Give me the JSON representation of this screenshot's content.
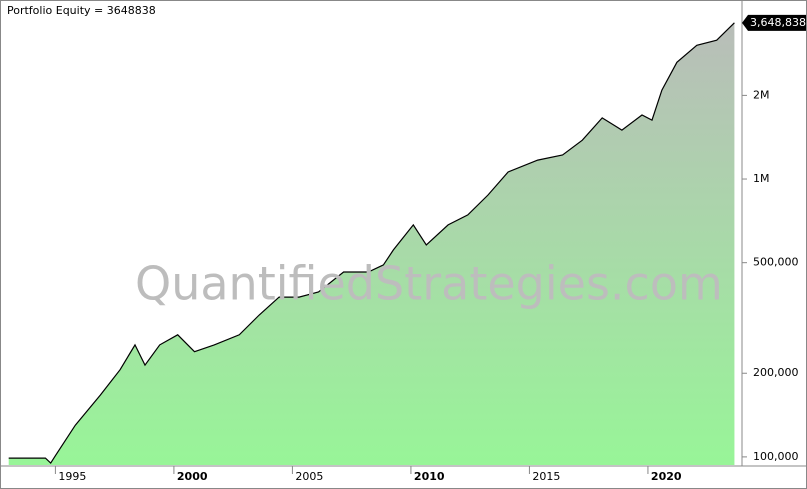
{
  "chart_data": {
    "type": "area",
    "title": "Portfolio Equity = 3648838",
    "watermark": "QuantifiedStrategies.com",
    "log_scale": true,
    "xlim": [
      1993.0,
      2023.8
    ],
    "xticks": [
      1995,
      2000,
      2005,
      2010,
      2015,
      2020
    ],
    "ylim": [
      93500,
      4230000
    ],
    "yticks": [
      {
        "value": 100000,
        "label": "100,000"
      },
      {
        "value": 200000,
        "label": "200,000"
      },
      {
        "value": 500000,
        "label": "500,000"
      },
      {
        "value": 1000000,
        "label": "1M"
      },
      {
        "value": 2000000,
        "label": "2M"
      }
    ],
    "x": [
      1993.03,
      1994.58,
      1994.8,
      1995.0,
      1995.84,
      1996.9,
      1997.73,
      1998.36,
      1998.78,
      1999.4,
      2000.16,
      2000.87,
      2001.7,
      2002.76,
      2003.6,
      2004.44,
      2005.28,
      2006.1,
      2007.16,
      2008.2,
      2008.84,
      2009.26,
      2010.1,
      2010.65,
      2011.57,
      2012.4,
      2013.25,
      2014.1,
      2015.35,
      2016.4,
      2017.23,
      2018.07,
      2018.9,
      2019.75,
      2020.17,
      2020.59,
      2021.22,
      2022.06,
      2022.9,
      2023.65
    ],
    "series": [
      {
        "name": "Portfolio Equity",
        "color": "#000000",
        "fill_top": "#b9bdb9",
        "fill_bottom": "#98f598",
        "values": [
          99000,
          99000,
          95000,
          101000,
          130000,
          167000,
          206000,
          253000,
          214000,
          253000,
          275000,
          239000,
          253000,
          275000,
          324000,
          376000,
          376000,
          392000,
          463000,
          463000,
          491000,
          556000,
          684000,
          579000,
          684000,
          743000,
          876000,
          1060000,
          1170000,
          1220000,
          1380000,
          1660000,
          1500000,
          1700000,
          1630000,
          2090000,
          2630000,
          3030000,
          3160000,
          3648838
        ],
        "value_labels": [
          null,
          null,
          null,
          null,
          null,
          null,
          null,
          null,
          null,
          null,
          null,
          null,
          null,
          null,
          null,
          null,
          null,
          null,
          null,
          null,
          null,
          null,
          null,
          null,
          null,
          null,
          null,
          null,
          null,
          null,
          null,
          null,
          null,
          null,
          null,
          null,
          null,
          null,
          null,
          "3,648,838"
        ]
      }
    ]
  }
}
